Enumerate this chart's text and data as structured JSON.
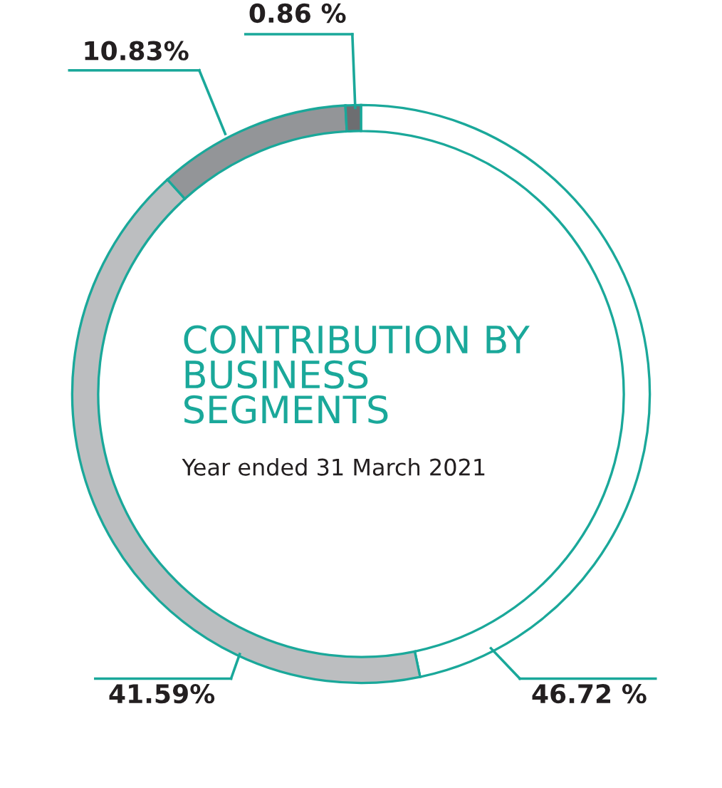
{
  "chart_data": {
    "type": "donut",
    "title": "CONTRIBUTION BY\nBUSINESS\nSEGMENTS",
    "subtitle": "Year ended 31 March 2021",
    "categories": [
      null,
      null,
      null,
      null
    ],
    "values": [
      46.72,
      41.59,
      10.83,
      0.86
    ],
    "colors": [
      "#ffffff",
      "#bcbec0",
      "#939598",
      "#6d6e71"
    ],
    "value_labels": [
      "46.72 %",
      "41.59%",
      "10.83%",
      "0.86 %"
    ]
  }
}
